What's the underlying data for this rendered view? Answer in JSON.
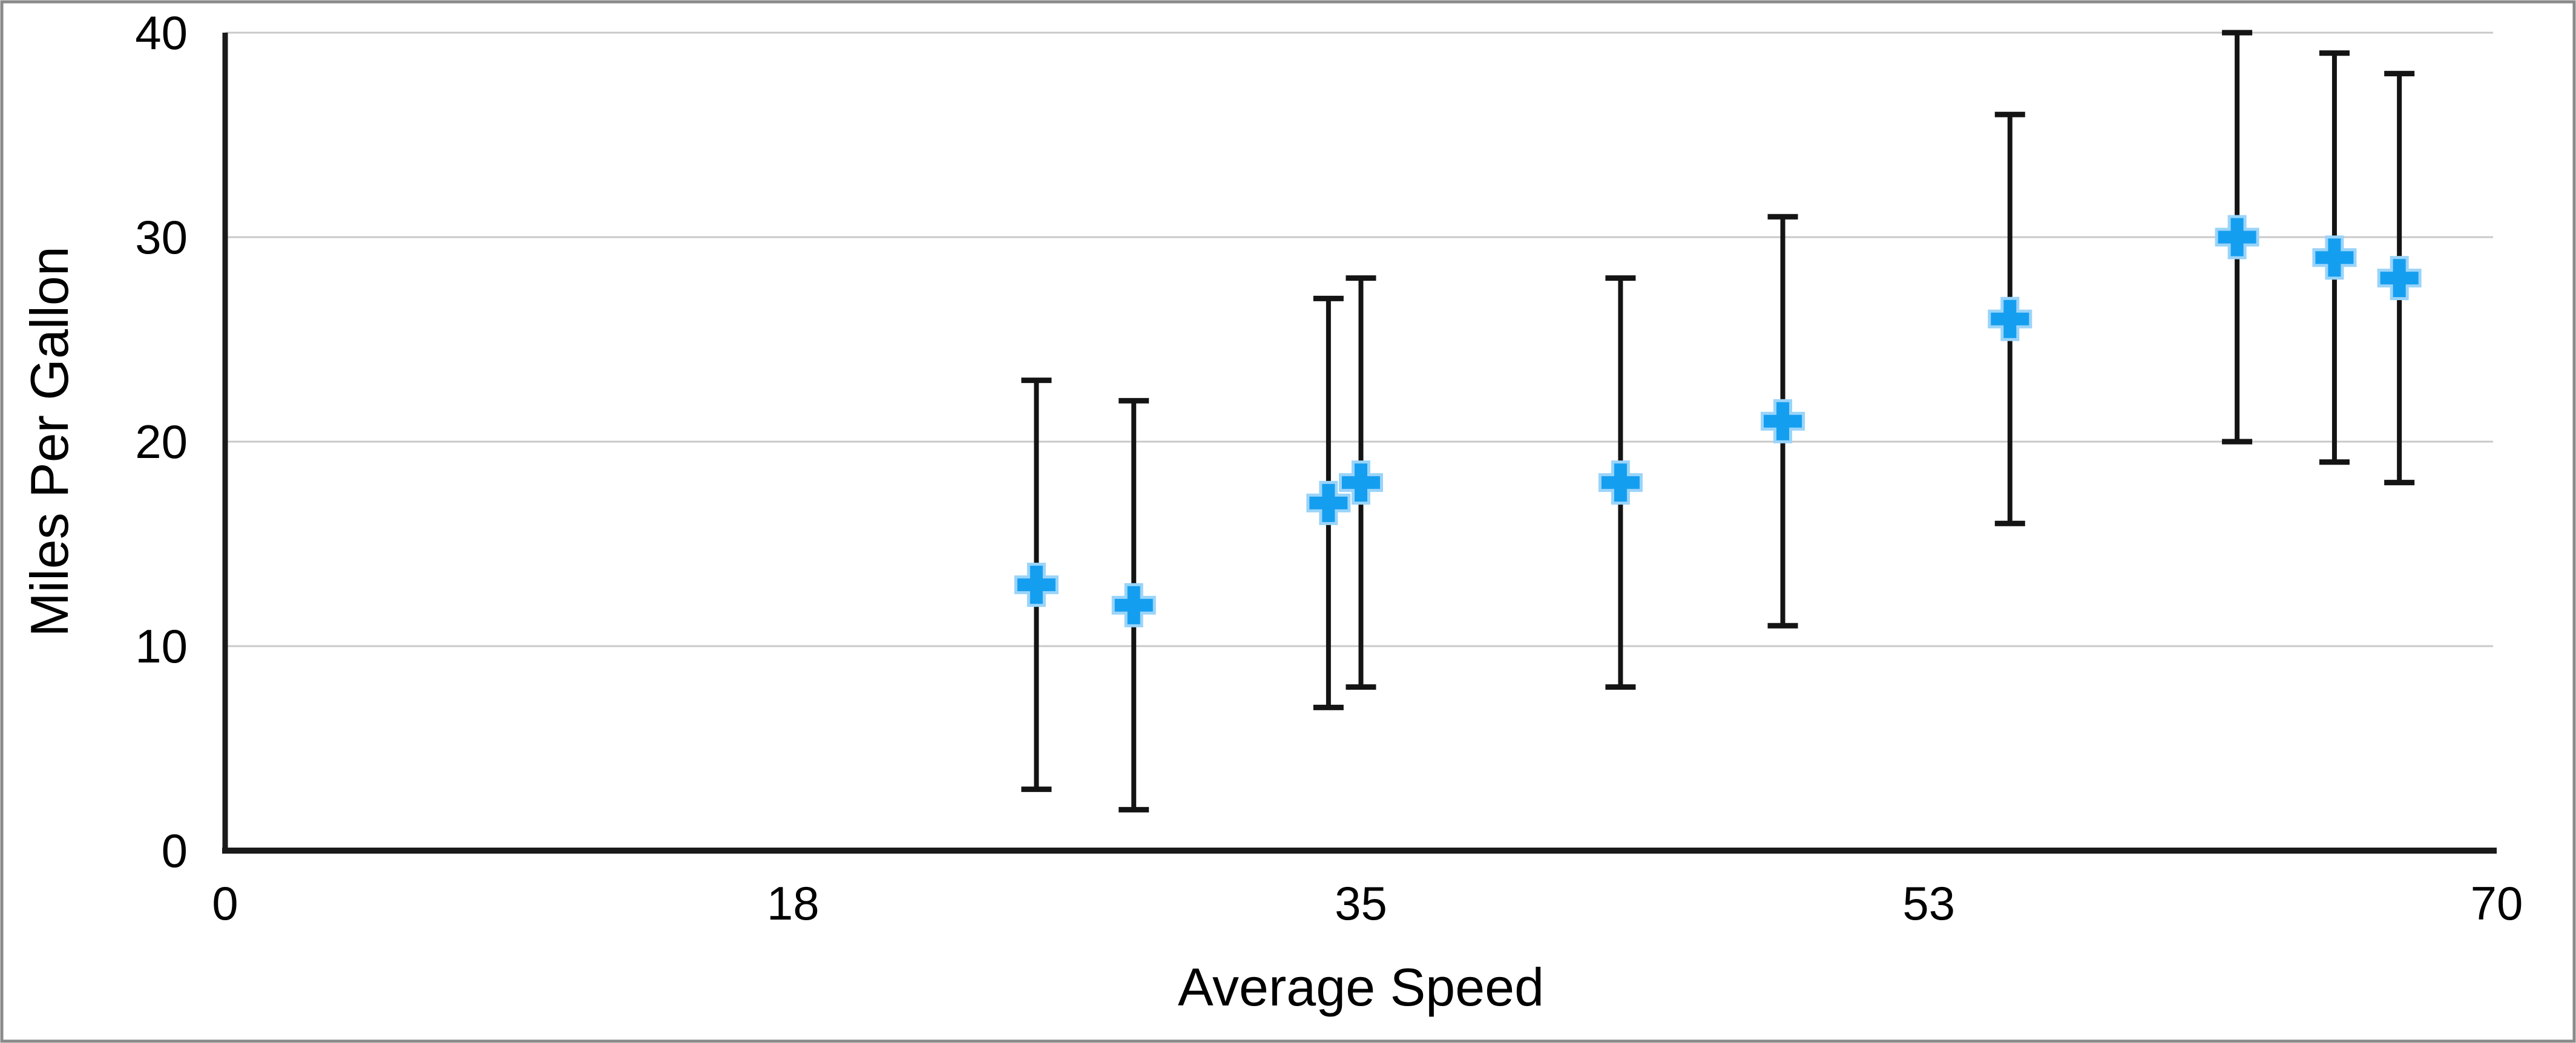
{
  "chart_data": {
    "type": "scatter",
    "title": "",
    "xlabel": "Average Speed",
    "ylabel": "Miles Per Gallon",
    "xlim": [
      0,
      70
    ],
    "ylim": [
      0,
      40
    ],
    "x_ticks": [
      {
        "label": "0",
        "value": 0
      },
      {
        "label": "18",
        "value": 17.5
      },
      {
        "label": "35",
        "value": 35
      },
      {
        "label": "53",
        "value": 52.5
      },
      {
        "label": "70",
        "value": 70
      }
    ],
    "y_ticks": [
      {
        "label": "0",
        "value": 0
      },
      {
        "label": "10",
        "value": 10
      },
      {
        "label": "20",
        "value": 20
      },
      {
        "label": "30",
        "value": 30
      },
      {
        "label": "40",
        "value": 40
      }
    ],
    "grid": "horizontal-only",
    "legend": "none",
    "series": [
      {
        "name": "Miles Per Gallon",
        "marker": "plus",
        "error_bars": "vertical",
        "points": [
          {
            "x": 25,
            "y": 13,
            "err_plus": 10,
            "err_minus": 10
          },
          {
            "x": 28,
            "y": 12,
            "err_plus": 10,
            "err_minus": 10
          },
          {
            "x": 34,
            "y": 17,
            "err_plus": 10,
            "err_minus": 10
          },
          {
            "x": 35,
            "y": 18,
            "err_plus": 10,
            "err_minus": 10
          },
          {
            "x": 43,
            "y": 18,
            "err_plus": 10,
            "err_minus": 10
          },
          {
            "x": 48,
            "y": 21,
            "err_plus": 10,
            "err_minus": 10
          },
          {
            "x": 55,
            "y": 26,
            "err_plus": 10,
            "err_minus": 10
          },
          {
            "x": 62,
            "y": 30,
            "err_plus": 10,
            "err_minus": 10
          },
          {
            "x": 65,
            "y": 29,
            "err_plus": 10,
            "err_minus": 10
          },
          {
            "x": 67,
            "y": 28,
            "err_plus": 10,
            "err_minus": 10
          }
        ]
      }
    ],
    "colors": {
      "marker": "#149EF0",
      "marker_outline": "#9AD4F9",
      "error_bar": "#141414",
      "axis": "#1A1A1A",
      "gridline": "#C9C9C9",
      "frame_border": "#8A8A8A",
      "text": "#000000",
      "background": "#FFFFFF"
    }
  }
}
